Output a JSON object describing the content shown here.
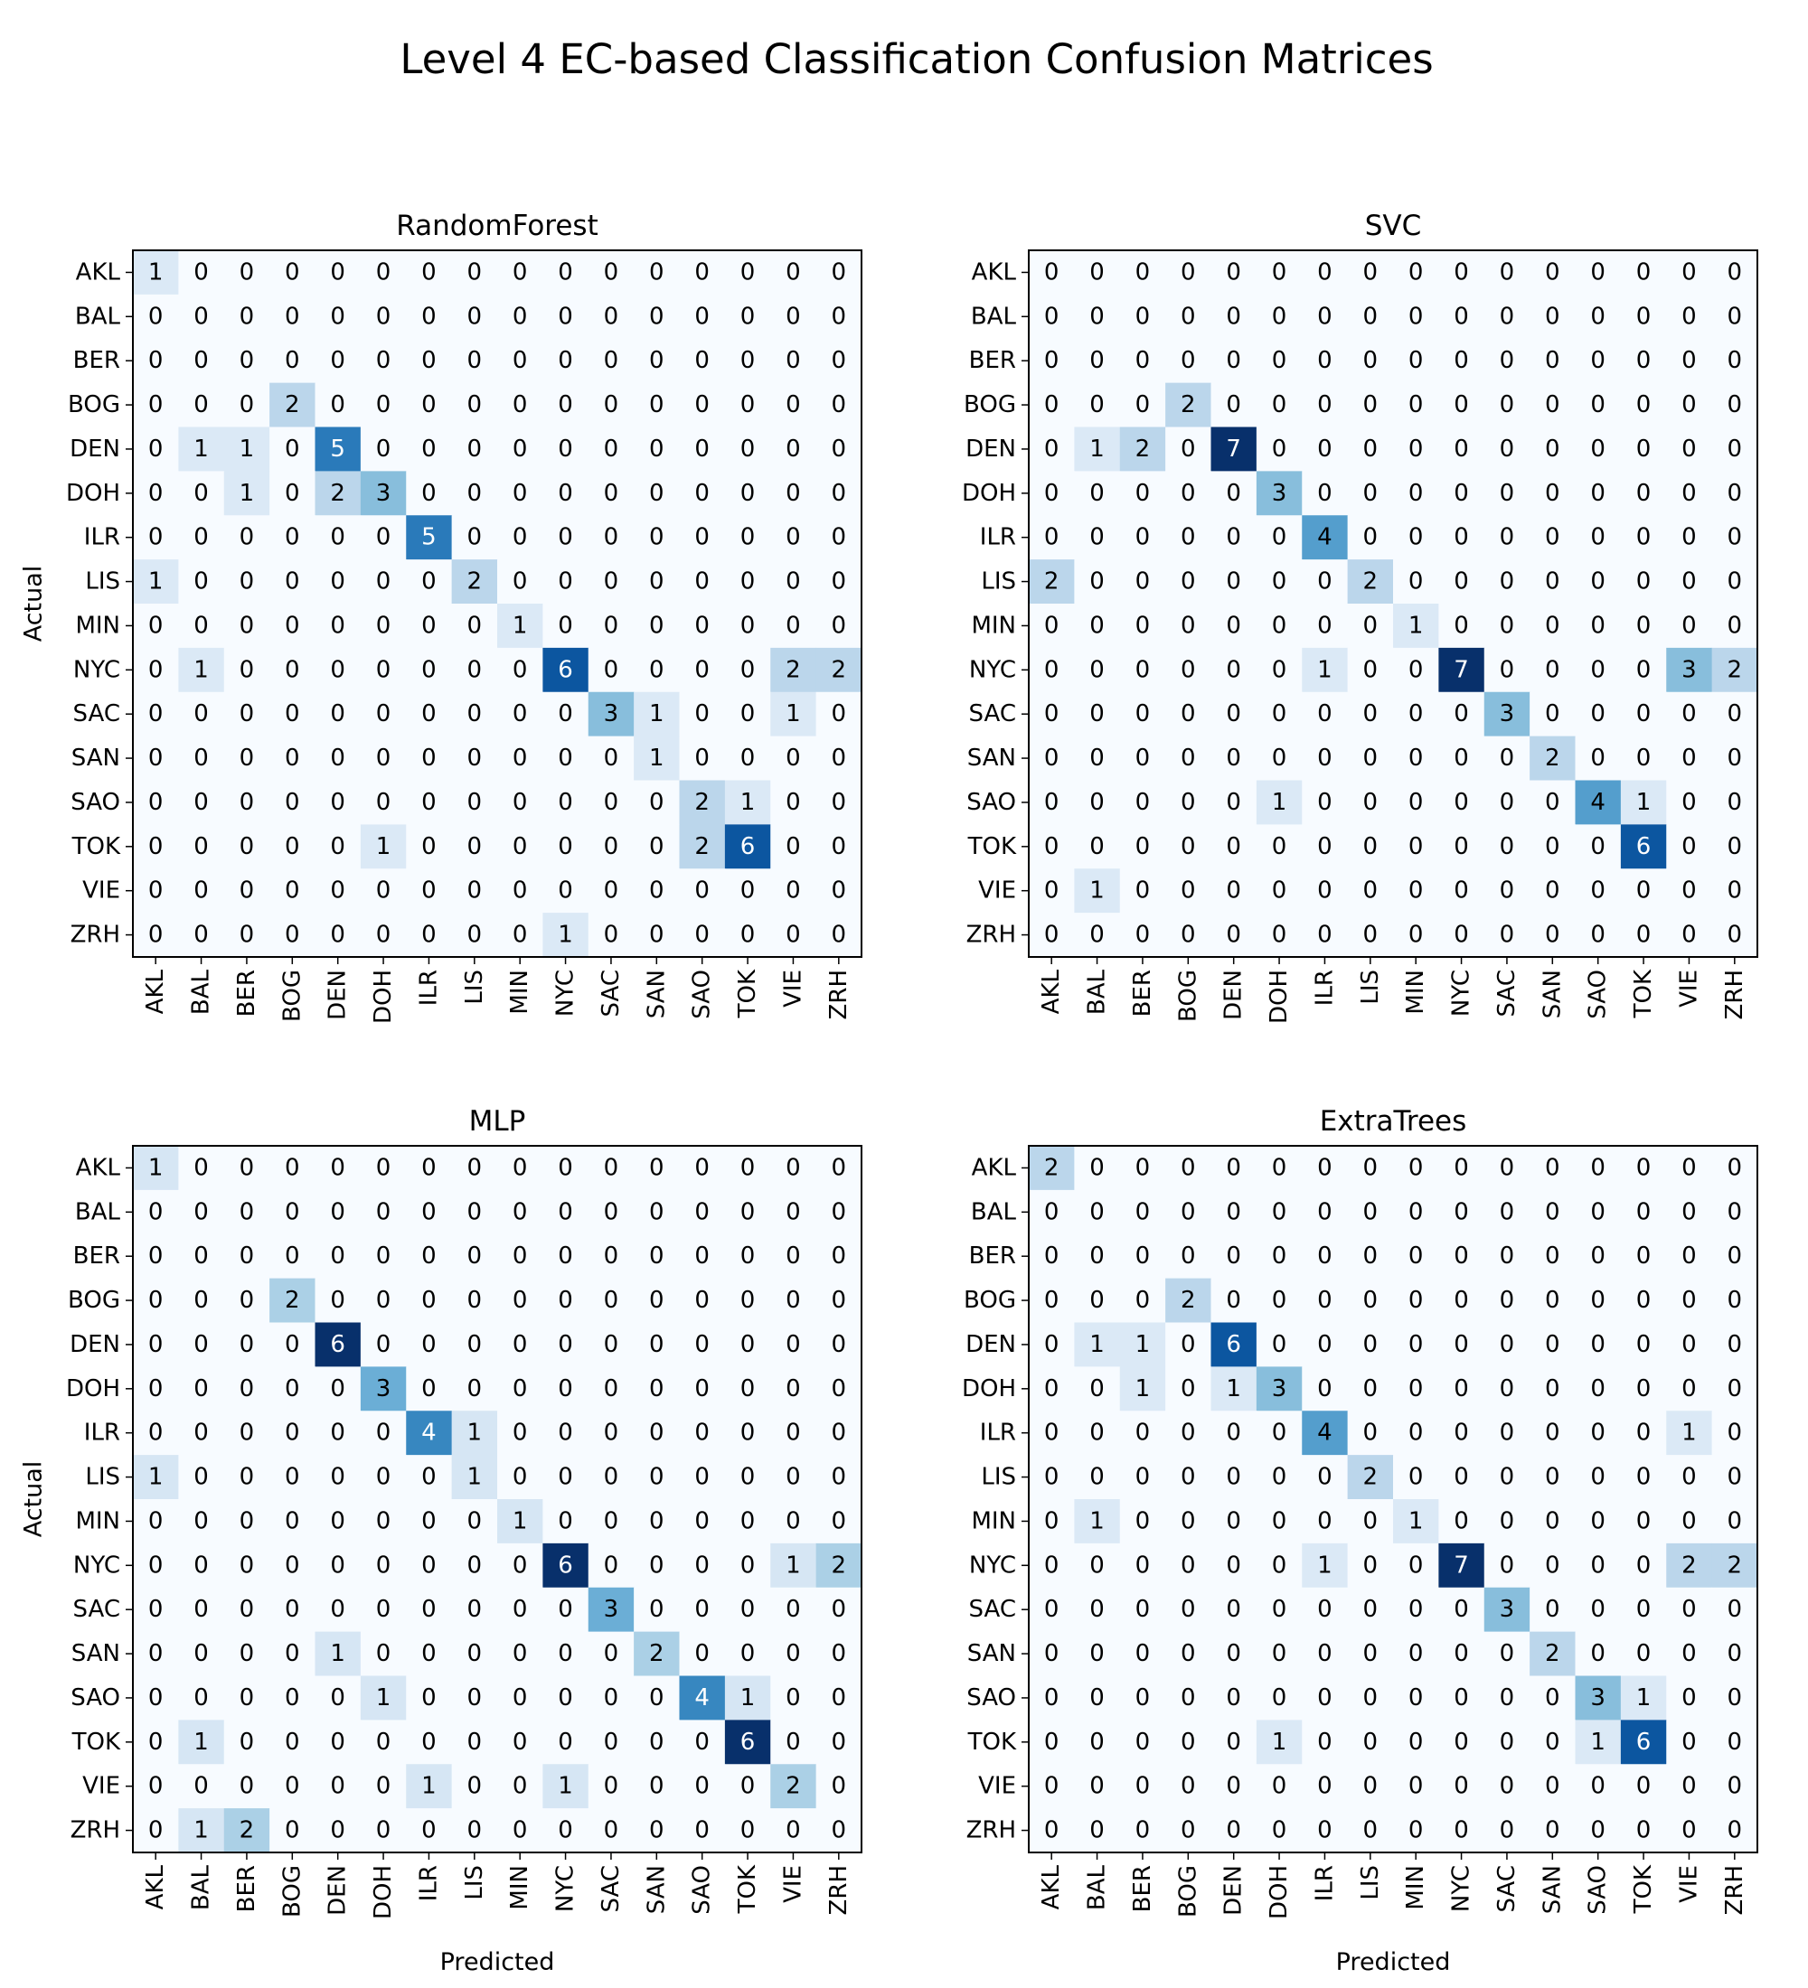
{
  "figure": {
    "title": "Level 4 EC-based Classification Confusion Matrices"
  },
  "chart_data": [
    {
      "type": "heatmap",
      "title": "RandomForest",
      "xlabel": "",
      "ylabel": "Actual",
      "colormap": "Blues",
      "value_range": [
        0,
        7
      ],
      "x_categories": [
        "AKL",
        "BAL",
        "BER",
        "BOG",
        "DEN",
        "DOH",
        "ILR",
        "LIS",
        "MIN",
        "NYC",
        "SAC",
        "SAN",
        "SAO",
        "TOK",
        "VIE",
        "ZRH"
      ],
      "y_categories": [
        "AKL",
        "BAL",
        "BER",
        "BOG",
        "DEN",
        "DOH",
        "ILR",
        "LIS",
        "MIN",
        "NYC",
        "SAC",
        "SAN",
        "SAO",
        "TOK",
        "VIE",
        "ZRH"
      ],
      "matrix": [
        [
          1,
          0,
          0,
          0,
          0,
          0,
          0,
          0,
          0,
          0,
          0,
          0,
          0,
          0,
          0,
          0
        ],
        [
          0,
          0,
          0,
          0,
          0,
          0,
          0,
          0,
          0,
          0,
          0,
          0,
          0,
          0,
          0,
          0
        ],
        [
          0,
          0,
          0,
          0,
          0,
          0,
          0,
          0,
          0,
          0,
          0,
          0,
          0,
          0,
          0,
          0
        ],
        [
          0,
          0,
          0,
          2,
          0,
          0,
          0,
          0,
          0,
          0,
          0,
          0,
          0,
          0,
          0,
          0
        ],
        [
          0,
          1,
          1,
          0,
          5,
          0,
          0,
          0,
          0,
          0,
          0,
          0,
          0,
          0,
          0,
          0
        ],
        [
          0,
          0,
          1,
          0,
          2,
          3,
          0,
          0,
          0,
          0,
          0,
          0,
          0,
          0,
          0,
          0
        ],
        [
          0,
          0,
          0,
          0,
          0,
          0,
          5,
          0,
          0,
          0,
          0,
          0,
          0,
          0,
          0,
          0
        ],
        [
          1,
          0,
          0,
          0,
          0,
          0,
          0,
          2,
          0,
          0,
          0,
          0,
          0,
          0,
          0,
          0
        ],
        [
          0,
          0,
          0,
          0,
          0,
          0,
          0,
          0,
          1,
          0,
          0,
          0,
          0,
          0,
          0,
          0
        ],
        [
          0,
          1,
          0,
          0,
          0,
          0,
          0,
          0,
          0,
          6,
          0,
          0,
          0,
          0,
          2,
          2
        ],
        [
          0,
          0,
          0,
          0,
          0,
          0,
          0,
          0,
          0,
          0,
          3,
          1,
          0,
          0,
          1,
          0
        ],
        [
          0,
          0,
          0,
          0,
          0,
          0,
          0,
          0,
          0,
          0,
          0,
          1,
          0,
          0,
          0,
          0
        ],
        [
          0,
          0,
          0,
          0,
          0,
          0,
          0,
          0,
          0,
          0,
          0,
          0,
          2,
          1,
          0,
          0
        ],
        [
          0,
          0,
          0,
          0,
          0,
          1,
          0,
          0,
          0,
          0,
          0,
          0,
          2,
          6,
          0,
          0
        ],
        [
          0,
          0,
          0,
          0,
          0,
          0,
          0,
          0,
          0,
          0,
          0,
          0,
          0,
          0,
          0,
          0
        ],
        [
          0,
          0,
          0,
          0,
          0,
          0,
          0,
          0,
          0,
          1,
          0,
          0,
          0,
          0,
          0,
          0
        ]
      ]
    },
    {
      "type": "heatmap",
      "title": "SVC",
      "xlabel": "",
      "ylabel": "",
      "colormap": "Blues",
      "value_range": [
        0,
        7
      ],
      "x_categories": [
        "AKL",
        "BAL",
        "BER",
        "BOG",
        "DEN",
        "DOH",
        "ILR",
        "LIS",
        "MIN",
        "NYC",
        "SAC",
        "SAN",
        "SAO",
        "TOK",
        "VIE",
        "ZRH"
      ],
      "y_categories": [
        "AKL",
        "BAL",
        "BER",
        "BOG",
        "DEN",
        "DOH",
        "ILR",
        "LIS",
        "MIN",
        "NYC",
        "SAC",
        "SAN",
        "SAO",
        "TOK",
        "VIE",
        "ZRH"
      ],
      "matrix": [
        [
          0,
          0,
          0,
          0,
          0,
          0,
          0,
          0,
          0,
          0,
          0,
          0,
          0,
          0,
          0,
          0
        ],
        [
          0,
          0,
          0,
          0,
          0,
          0,
          0,
          0,
          0,
          0,
          0,
          0,
          0,
          0,
          0,
          0
        ],
        [
          0,
          0,
          0,
          0,
          0,
          0,
          0,
          0,
          0,
          0,
          0,
          0,
          0,
          0,
          0,
          0
        ],
        [
          0,
          0,
          0,
          2,
          0,
          0,
          0,
          0,
          0,
          0,
          0,
          0,
          0,
          0,
          0,
          0
        ],
        [
          0,
          1,
          2,
          0,
          7,
          0,
          0,
          0,
          0,
          0,
          0,
          0,
          0,
          0,
          0,
          0
        ],
        [
          0,
          0,
          0,
          0,
          0,
          3,
          0,
          0,
          0,
          0,
          0,
          0,
          0,
          0,
          0,
          0
        ],
        [
          0,
          0,
          0,
          0,
          0,
          0,
          4,
          0,
          0,
          0,
          0,
          0,
          0,
          0,
          0,
          0
        ],
        [
          2,
          0,
          0,
          0,
          0,
          0,
          0,
          2,
          0,
          0,
          0,
          0,
          0,
          0,
          0,
          0
        ],
        [
          0,
          0,
          0,
          0,
          0,
          0,
          0,
          0,
          1,
          0,
          0,
          0,
          0,
          0,
          0,
          0
        ],
        [
          0,
          0,
          0,
          0,
          0,
          0,
          1,
          0,
          0,
          7,
          0,
          0,
          0,
          0,
          3,
          2
        ],
        [
          0,
          0,
          0,
          0,
          0,
          0,
          0,
          0,
          0,
          0,
          3,
          0,
          0,
          0,
          0,
          0
        ],
        [
          0,
          0,
          0,
          0,
          0,
          0,
          0,
          0,
          0,
          0,
          0,
          2,
          0,
          0,
          0,
          0
        ],
        [
          0,
          0,
          0,
          0,
          0,
          1,
          0,
          0,
          0,
          0,
          0,
          0,
          4,
          1,
          0,
          0
        ],
        [
          0,
          0,
          0,
          0,
          0,
          0,
          0,
          0,
          0,
          0,
          0,
          0,
          0,
          6,
          0,
          0
        ],
        [
          0,
          1,
          0,
          0,
          0,
          0,
          0,
          0,
          0,
          0,
          0,
          0,
          0,
          0,
          0,
          0
        ],
        [
          0,
          0,
          0,
          0,
          0,
          0,
          0,
          0,
          0,
          0,
          0,
          0,
          0,
          0,
          0,
          0
        ]
      ]
    },
    {
      "type": "heatmap",
      "title": "MLP",
      "xlabel": "Predicted",
      "ylabel": "Actual",
      "colormap": "Blues",
      "value_range": [
        0,
        6
      ],
      "x_categories": [
        "AKL",
        "BAL",
        "BER",
        "BOG",
        "DEN",
        "DOH",
        "ILR",
        "LIS",
        "MIN",
        "NYC",
        "SAC",
        "SAN",
        "SAO",
        "TOK",
        "VIE",
        "ZRH"
      ],
      "y_categories": [
        "AKL",
        "BAL",
        "BER",
        "BOG",
        "DEN",
        "DOH",
        "ILR",
        "LIS",
        "MIN",
        "NYC",
        "SAC",
        "SAN",
        "SAO",
        "TOK",
        "VIE",
        "ZRH"
      ],
      "matrix": [
        [
          1,
          0,
          0,
          0,
          0,
          0,
          0,
          0,
          0,
          0,
          0,
          0,
          0,
          0,
          0,
          0
        ],
        [
          0,
          0,
          0,
          0,
          0,
          0,
          0,
          0,
          0,
          0,
          0,
          0,
          0,
          0,
          0,
          0
        ],
        [
          0,
          0,
          0,
          0,
          0,
          0,
          0,
          0,
          0,
          0,
          0,
          0,
          0,
          0,
          0,
          0
        ],
        [
          0,
          0,
          0,
          2,
          0,
          0,
          0,
          0,
          0,
          0,
          0,
          0,
          0,
          0,
          0,
          0
        ],
        [
          0,
          0,
          0,
          0,
          6,
          0,
          0,
          0,
          0,
          0,
          0,
          0,
          0,
          0,
          0,
          0
        ],
        [
          0,
          0,
          0,
          0,
          0,
          3,
          0,
          0,
          0,
          0,
          0,
          0,
          0,
          0,
          0,
          0
        ],
        [
          0,
          0,
          0,
          0,
          0,
          0,
          4,
          1,
          0,
          0,
          0,
          0,
          0,
          0,
          0,
          0
        ],
        [
          1,
          0,
          0,
          0,
          0,
          0,
          0,
          1,
          0,
          0,
          0,
          0,
          0,
          0,
          0,
          0
        ],
        [
          0,
          0,
          0,
          0,
          0,
          0,
          0,
          0,
          1,
          0,
          0,
          0,
          0,
          0,
          0,
          0
        ],
        [
          0,
          0,
          0,
          0,
          0,
          0,
          0,
          0,
          0,
          6,
          0,
          0,
          0,
          0,
          1,
          2
        ],
        [
          0,
          0,
          0,
          0,
          0,
          0,
          0,
          0,
          0,
          0,
          3,
          0,
          0,
          0,
          0,
          0
        ],
        [
          0,
          0,
          0,
          0,
          1,
          0,
          0,
          0,
          0,
          0,
          0,
          2,
          0,
          0,
          0,
          0
        ],
        [
          0,
          0,
          0,
          0,
          0,
          1,
          0,
          0,
          0,
          0,
          0,
          0,
          4,
          1,
          0,
          0
        ],
        [
          0,
          1,
          0,
          0,
          0,
          0,
          0,
          0,
          0,
          0,
          0,
          0,
          0,
          6,
          0,
          0
        ],
        [
          0,
          0,
          0,
          0,
          0,
          0,
          1,
          0,
          0,
          1,
          0,
          0,
          0,
          0,
          2,
          0
        ],
        [
          0,
          1,
          2,
          0,
          0,
          0,
          0,
          0,
          0,
          0,
          0,
          0,
          0,
          0,
          0,
          0
        ]
      ]
    },
    {
      "type": "heatmap",
      "title": "ExtraTrees",
      "xlabel": "Predicted",
      "ylabel": "",
      "colormap": "Blues",
      "value_range": [
        0,
        7
      ],
      "x_categories": [
        "AKL",
        "BAL",
        "BER",
        "BOG",
        "DEN",
        "DOH",
        "ILR",
        "LIS",
        "MIN",
        "NYC",
        "SAC",
        "SAN",
        "SAO",
        "TOK",
        "VIE",
        "ZRH"
      ],
      "y_categories": [
        "AKL",
        "BAL",
        "BER",
        "BOG",
        "DEN",
        "DOH",
        "ILR",
        "LIS",
        "MIN",
        "NYC",
        "SAC",
        "SAN",
        "SAO",
        "TOK",
        "VIE",
        "ZRH"
      ],
      "matrix": [
        [
          2,
          0,
          0,
          0,
          0,
          0,
          0,
          0,
          0,
          0,
          0,
          0,
          0,
          0,
          0,
          0
        ],
        [
          0,
          0,
          0,
          0,
          0,
          0,
          0,
          0,
          0,
          0,
          0,
          0,
          0,
          0,
          0,
          0
        ],
        [
          0,
          0,
          0,
          0,
          0,
          0,
          0,
          0,
          0,
          0,
          0,
          0,
          0,
          0,
          0,
          0
        ],
        [
          0,
          0,
          0,
          2,
          0,
          0,
          0,
          0,
          0,
          0,
          0,
          0,
          0,
          0,
          0,
          0
        ],
        [
          0,
          1,
          1,
          0,
          6,
          0,
          0,
          0,
          0,
          0,
          0,
          0,
          0,
          0,
          0,
          0
        ],
        [
          0,
          0,
          1,
          0,
          1,
          3,
          0,
          0,
          0,
          0,
          0,
          0,
          0,
          0,
          0,
          0
        ],
        [
          0,
          0,
          0,
          0,
          0,
          0,
          4,
          0,
          0,
          0,
          0,
          0,
          0,
          0,
          1,
          0
        ],
        [
          0,
          0,
          0,
          0,
          0,
          0,
          0,
          2,
          0,
          0,
          0,
          0,
          0,
          0,
          0,
          0
        ],
        [
          0,
          1,
          0,
          0,
          0,
          0,
          0,
          0,
          1,
          0,
          0,
          0,
          0,
          0,
          0,
          0
        ],
        [
          0,
          0,
          0,
          0,
          0,
          0,
          1,
          0,
          0,
          7,
          0,
          0,
          0,
          0,
          2,
          2
        ],
        [
          0,
          0,
          0,
          0,
          0,
          0,
          0,
          0,
          0,
          0,
          3,
          0,
          0,
          0,
          0,
          0
        ],
        [
          0,
          0,
          0,
          0,
          0,
          0,
          0,
          0,
          0,
          0,
          0,
          2,
          0,
          0,
          0,
          0
        ],
        [
          0,
          0,
          0,
          0,
          0,
          0,
          0,
          0,
          0,
          0,
          0,
          0,
          3,
          1,
          0,
          0
        ],
        [
          0,
          0,
          0,
          0,
          0,
          1,
          0,
          0,
          0,
          0,
          0,
          0,
          1,
          6,
          0,
          0
        ],
        [
          0,
          0,
          0,
          0,
          0,
          0,
          0,
          0,
          0,
          0,
          0,
          0,
          0,
          0,
          0,
          0
        ],
        [
          0,
          0,
          0,
          0,
          0,
          0,
          0,
          0,
          0,
          0,
          0,
          0,
          0,
          0,
          0,
          0
        ]
      ]
    }
  ]
}
